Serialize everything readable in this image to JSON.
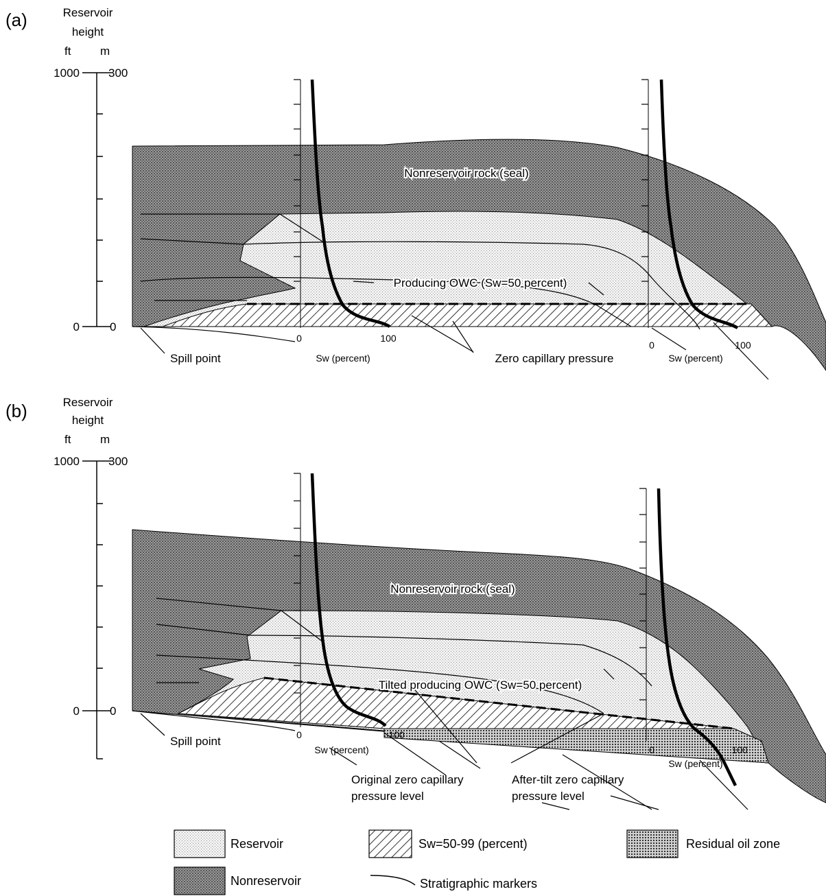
{
  "panel_a": {
    "label": "(a)",
    "axis_title_1": "Reservoir",
    "axis_title_2": "height",
    "unit_ft": "ft",
    "unit_m": "m",
    "tick_top_ft": "1000",
    "tick_top_m": "300",
    "tick_zero_ft": "0",
    "tick_zero_m": "0",
    "seal_label": "Nonreservoir rock (seal)",
    "owc_label": "Producing OWC (Sw=50 percent)",
    "spill_label": "Spill point",
    "zero_cap_label": "Zero capillary pressure",
    "log1": {
      "zero": "0",
      "hundred": "100",
      "axis_label": "Sw (percent)"
    },
    "log2": {
      "zero": "0",
      "hundred": "100",
      "axis_label": "Sw (percent)"
    }
  },
  "panel_b": {
    "label": "(b)",
    "axis_title_1": "Reservoir",
    "axis_title_2": "height",
    "unit_ft": "ft",
    "unit_m": "m",
    "tick_top_ft": "1000",
    "tick_top_m": "300",
    "tick_zero_ft": "0",
    "tick_zero_m": "0",
    "seal_label": "Nonreservoir rock (seal)",
    "owc_label": "Tilted producing OWC (Sw=50 percent)",
    "spill_label": "Spill point",
    "orig_zero_line1": "Original zero capillary",
    "orig_zero_line2": "pressure level",
    "after_zero_line1": "After-tilt zero capillary",
    "after_zero_line2": "pressure level",
    "log1": {
      "zero": "0",
      "hundred": "100",
      "axis_label": "Sw (percent)"
    },
    "log2": {
      "zero": "0",
      "hundred": "100",
      "axis_label": "Sw (percent)"
    }
  },
  "legend": {
    "reservoir": "Reservoir",
    "nonreservoir": "Nonreservoir",
    "sw_zone": "Sw=50-99 (percent)",
    "stratigraphic": "Stratigraphic markers",
    "residual": "Residual oil zone"
  },
  "colors": {
    "nonreservoir": "#8a8a8a",
    "reservoir": "#e6e6e6",
    "ink": "#000000"
  }
}
